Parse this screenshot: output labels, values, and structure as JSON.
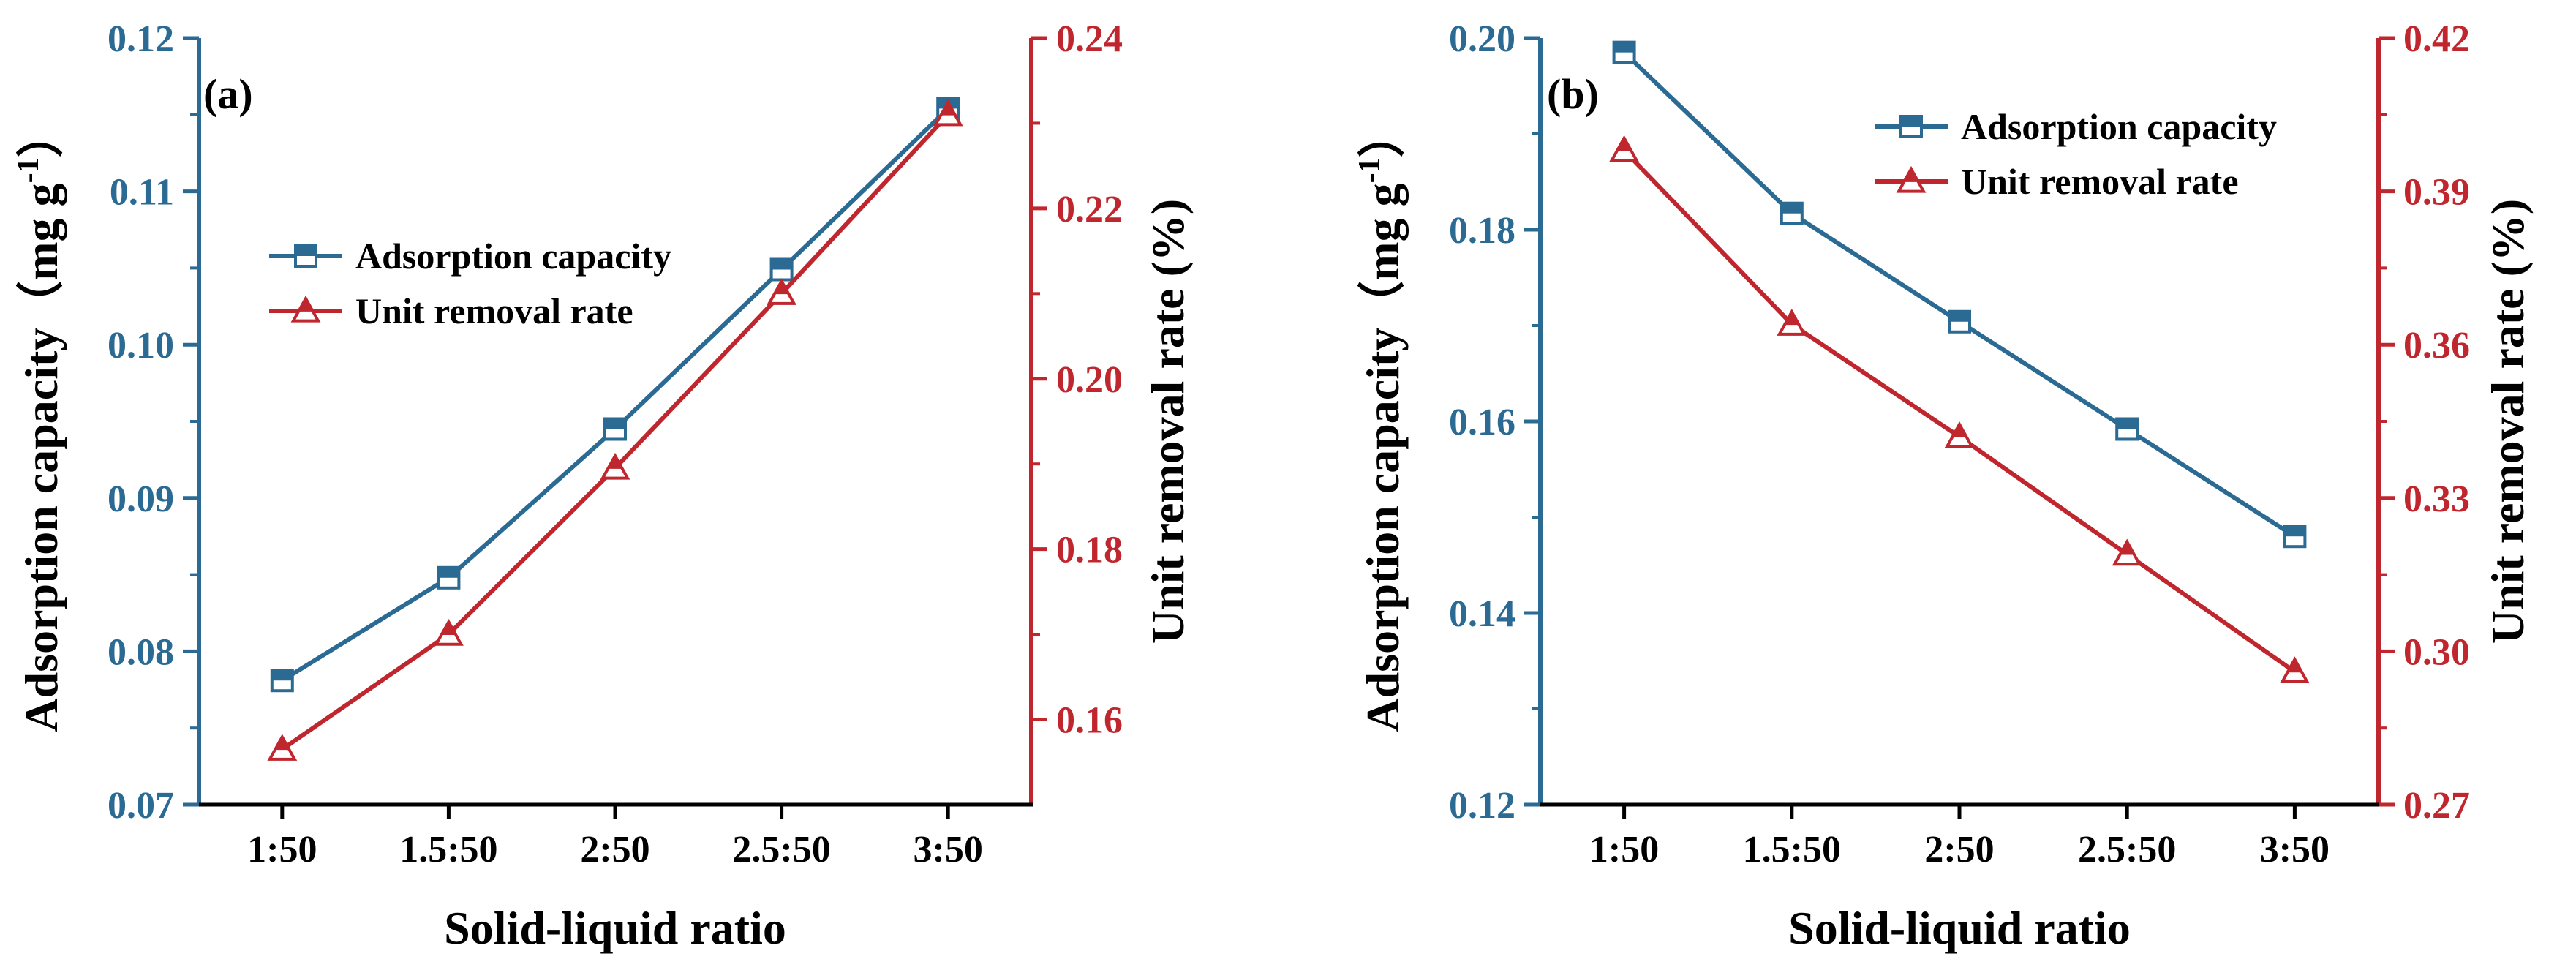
{
  "colors": {
    "blue": "#2a6a93",
    "red": "#c0262d",
    "axis": "#000000"
  },
  "chart_data": [
    {
      "type": "line",
      "panel_label": "(a)",
      "categories": [
        "1:50",
        "1.5:50",
        "2:50",
        "2.5:50",
        "3:50"
      ],
      "xlabel": "Solid-liquid ratio",
      "ylabel_left": "Adsorption capacity（mg g",
      "ylabel_left_sup": "-1",
      "ylabel_left_close": "）",
      "ylabel_right": "Unit removal rate (%)",
      "ylim_left": [
        0.07,
        0.12
      ],
      "yticks_left": [
        "0.07",
        "0.08",
        "0.09",
        "0.10",
        "0.11",
        "0.12"
      ],
      "ylim_right": [
        0.15,
        0.24
      ],
      "yticks_right": [
        "0.16",
        "0.18",
        "0.20",
        "0.22",
        "0.24"
      ],
      "legend_position": "center-left",
      "series": [
        {
          "name": "Adsorption capacity",
          "axis": "left",
          "marker": "square",
          "values": [
            0.0781,
            0.0848,
            0.0945,
            0.1049,
            0.1154
          ]
        },
        {
          "name": "Unit removal rate",
          "axis": "right",
          "marker": "triangle",
          "values": [
            0.1565,
            0.17,
            0.1895,
            0.21,
            0.231
          ]
        }
      ]
    },
    {
      "type": "line",
      "panel_label": "(b)",
      "categories": [
        "1:50",
        "1.5:50",
        "2:50",
        "2.5:50",
        "3:50"
      ],
      "xlabel": "Solid-liquid ratio",
      "ylabel_left": "Adsorption capacity（mg g",
      "ylabel_left_sup": "-1",
      "ylabel_left_close": "）",
      "ylabel_right": "Unit removal rate (%)",
      "ylim_left": [
        0.12,
        0.2
      ],
      "yticks_left": [
        "0.12",
        "0.14",
        "0.16",
        "0.18",
        "0.20"
      ],
      "ylim_right": [
        0.27,
        0.42
      ],
      "yticks_right": [
        "0.27",
        "0.30",
        "0.33",
        "0.36",
        "0.39",
        "0.42"
      ],
      "legend_position": "top-right",
      "series": [
        {
          "name": "Adsorption capacity",
          "axis": "left",
          "marker": "square",
          "values": [
            0.1985,
            0.1817,
            0.1704,
            0.1592,
            0.148
          ]
        },
        {
          "name": "Unit removal rate",
          "axis": "right",
          "marker": "triangle",
          "values": [
            0.398,
            0.364,
            0.342,
            0.319,
            0.296
          ]
        }
      ]
    }
  ]
}
